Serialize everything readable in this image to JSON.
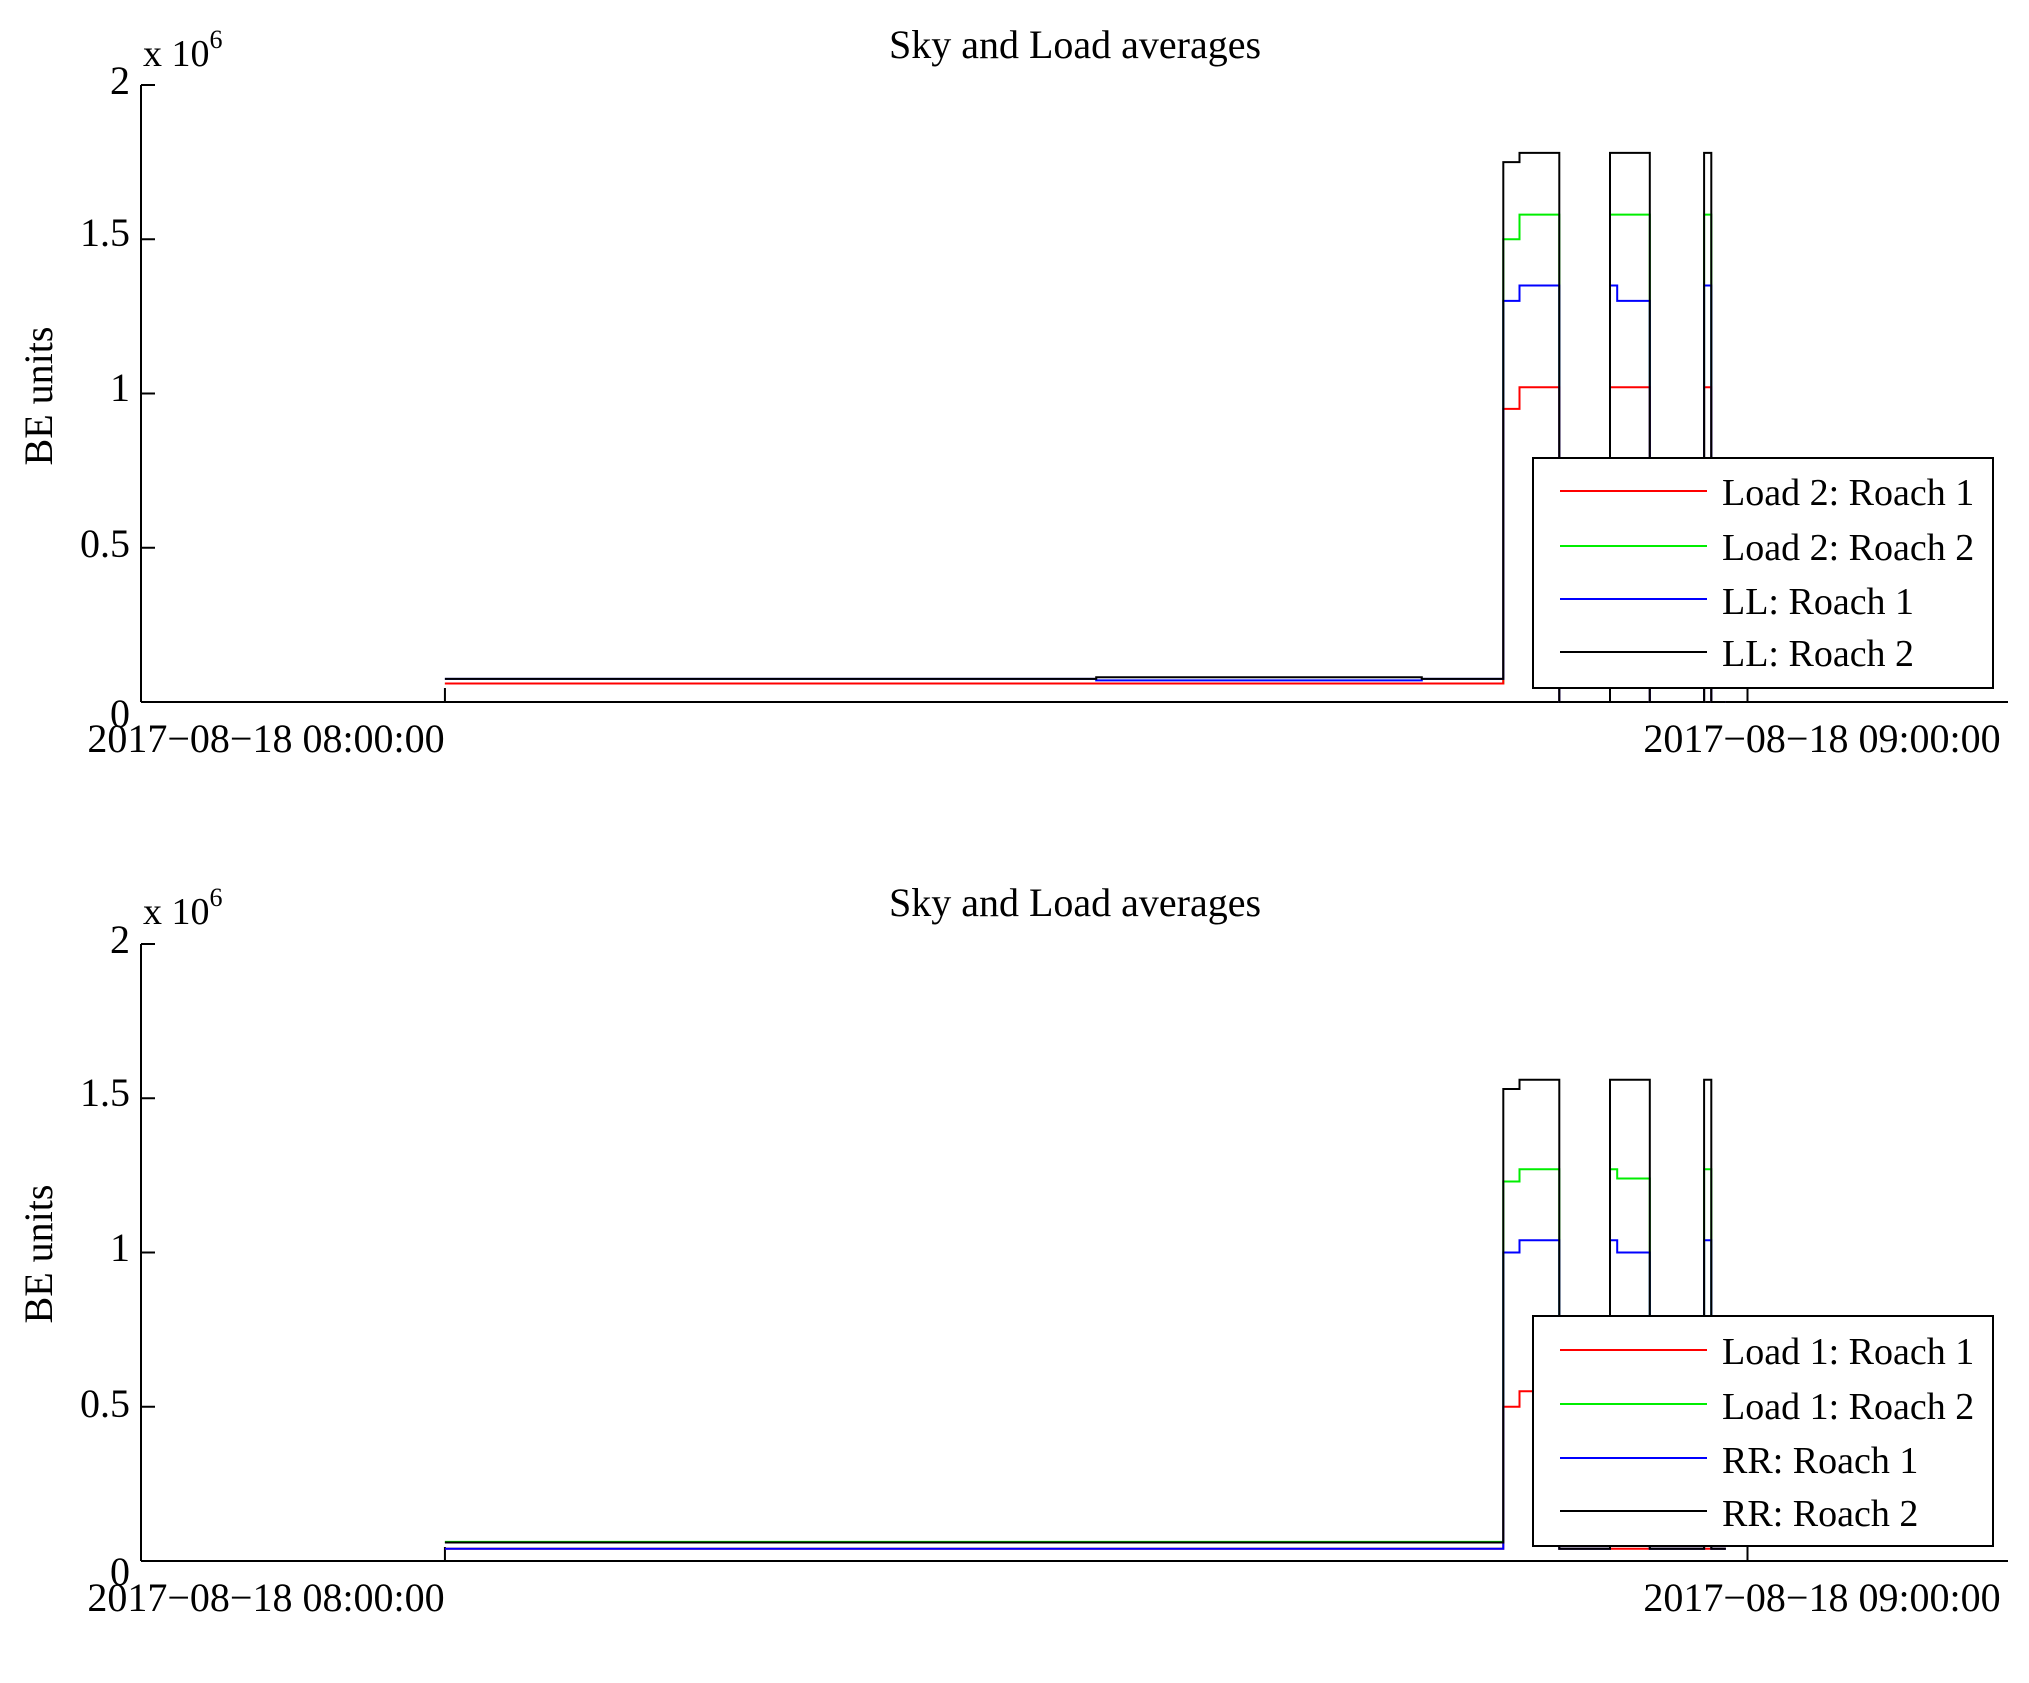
{
  "panels": [
    {
      "title": "Sky and Load averages",
      "ylabel": "BE units",
      "y_exponent_prefix": "x 10",
      "y_exponent_power": "6",
      "y_tick_labels": [
        "0",
        "0.5",
        "1",
        "1.5",
        "2"
      ],
      "x_tick_labels": [
        "2017−08−18 08:00:00",
        "2017−08−18 09:00:00"
      ],
      "legend": [
        "Load 2: Roach 1",
        "Load 2: Roach 2",
        "LL: Roach 1",
        "LL: Roach 2"
      ]
    },
    {
      "title": "Sky and Load averages",
      "ylabel": "BE units",
      "y_exponent_prefix": "x 10",
      "y_exponent_power": "6",
      "y_tick_labels": [
        "0",
        "0.5",
        "1",
        "1.5",
        "2"
      ],
      "x_tick_labels": [
        "2017−08−18 08:00:00",
        "2017−08−18 09:00:00"
      ],
      "legend": [
        "Load 1: Roach 1",
        "Load 1: Roach 2",
        "RR: Roach 1",
        "RR: Roach 2"
      ]
    }
  ],
  "colors": {
    "series": [
      "#ff0000",
      "#00ee00",
      "#0000ff",
      "#000000"
    ],
    "axes": "#000000",
    "background": "#ffffff"
  },
  "chart_data": [
    {
      "type": "line",
      "title": "Sky and Load averages",
      "xlabel": "",
      "ylabel": "BE units",
      "y_scale_factor": 1000000,
      "xlim": [
        "2017-08-18 07:46:00",
        "2017-08-18 09:12:00"
      ],
      "ylim": [
        0,
        2000000
      ],
      "grid": false,
      "legend_position": "bottom-right",
      "x": [
        "2017-08-18 08:00:00",
        "2017-08-18 08:15:00",
        "2017-08-18 08:30:00",
        "2017-08-18 08:45:00",
        "2017-08-18 08:48:30",
        "2017-08-18 08:48:45",
        "2017-08-18 08:49:30",
        "2017-08-18 08:51:00",
        "2017-08-18 08:51:20",
        "2017-08-18 08:52:00",
        "2017-08-18 08:53:40",
        "2017-08-18 08:54:00",
        "2017-08-18 08:55:30",
        "2017-08-18 08:55:50",
        "2017-08-18 08:58:00",
        "2017-08-18 08:58:20",
        "2017-08-18 08:59:00"
      ],
      "series": [
        {
          "name": "Load 2: Roach 1",
          "values": [
            60000,
            60000,
            60000,
            60000,
            60000,
            950000,
            1020000,
            1020000,
            0,
            0,
            1020000,
            1020000,
            0,
            0,
            1020000,
            0,
            0
          ]
        },
        {
          "name": "Load 2: Roach 2",
          "values": [
            60000,
            60000,
            60000,
            60000,
            60000,
            1500000,
            1580000,
            1580000,
            0,
            0,
            1580000,
            1580000,
            0,
            0,
            1580000,
            0,
            0
          ]
        },
        {
          "name": "LL: Roach 1",
          "values": [
            75000,
            75000,
            70000,
            75000,
            75000,
            1300000,
            1350000,
            1350000,
            0,
            0,
            1350000,
            1300000,
            0,
            0,
            1350000,
            0,
            0
          ]
        },
        {
          "name": "LL: Roach 2",
          "values": [
            75000,
            75000,
            80000,
            75000,
            75000,
            1750000,
            1780000,
            1780000,
            0,
            0,
            1780000,
            1780000,
            0,
            0,
            1780000,
            0,
            0
          ]
        }
      ]
    },
    {
      "type": "line",
      "title": "Sky and Load averages",
      "xlabel": "",
      "ylabel": "BE units",
      "y_scale_factor": 1000000,
      "xlim": [
        "2017-08-18 07:46:00",
        "2017-08-18 09:12:00"
      ],
      "ylim": [
        0,
        2000000
      ],
      "grid": false,
      "legend_position": "bottom-right",
      "x": [
        "2017-08-18 08:00:00",
        "2017-08-18 08:15:00",
        "2017-08-18 08:30:00",
        "2017-08-18 08:45:00",
        "2017-08-18 08:48:30",
        "2017-08-18 08:48:45",
        "2017-08-18 08:49:30",
        "2017-08-18 08:51:00",
        "2017-08-18 08:51:20",
        "2017-08-18 08:52:00",
        "2017-08-18 08:53:40",
        "2017-08-18 08:54:00",
        "2017-08-18 08:55:30",
        "2017-08-18 08:55:50",
        "2017-08-18 08:58:00",
        "2017-08-18 08:58:20",
        "2017-08-18 08:59:00"
      ],
      "series": [
        {
          "name": "Load 1: Roach 1",
          "values": [
            40000,
            40000,
            40000,
            40000,
            40000,
            500000,
            550000,
            550000,
            40000,
            40000,
            40000,
            40000,
            40000,
            40000,
            40000,
            40000,
            40000
          ]
        },
        {
          "name": "Load 1: Roach 2",
          "values": [
            62000,
            62000,
            62000,
            62000,
            62000,
            1230000,
            1270000,
            1270000,
            40000,
            40000,
            1270000,
            1240000,
            40000,
            40000,
            1270000,
            40000,
            40000
          ]
        },
        {
          "name": "RR: Roach 1",
          "values": [
            40000,
            40000,
            40000,
            40000,
            40000,
            1000000,
            1040000,
            1040000,
            40000,
            40000,
            1040000,
            1000000,
            40000,
            40000,
            1040000,
            40000,
            40000
          ]
        },
        {
          "name": "RR: Roach 2",
          "values": [
            60000,
            60000,
            60000,
            60000,
            60000,
            1530000,
            1560000,
            1560000,
            40000,
            40000,
            1560000,
            1560000,
            40000,
            40000,
            1560000,
            40000,
            40000
          ]
        }
      ]
    }
  ]
}
